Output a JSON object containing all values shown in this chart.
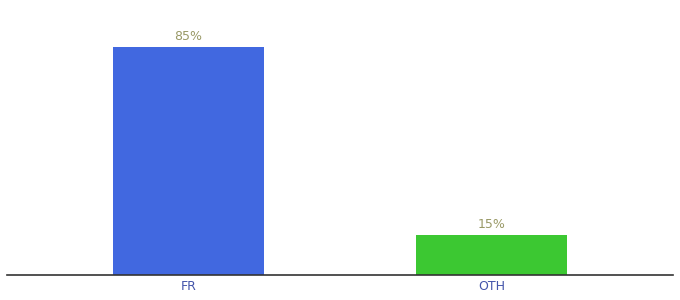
{
  "categories": [
    "FR",
    "OTH"
  ],
  "values": [
    85,
    15
  ],
  "bar_colors": [
    "#4168e0",
    "#3cc832"
  ],
  "label_color": "#999966",
  "label_fontsize": 9,
  "tick_fontsize": 9,
  "tick_color": "#4455aa",
  "background_color": "#ffffff",
  "ylim": [
    0,
    100
  ],
  "bar_width": 0.5
}
